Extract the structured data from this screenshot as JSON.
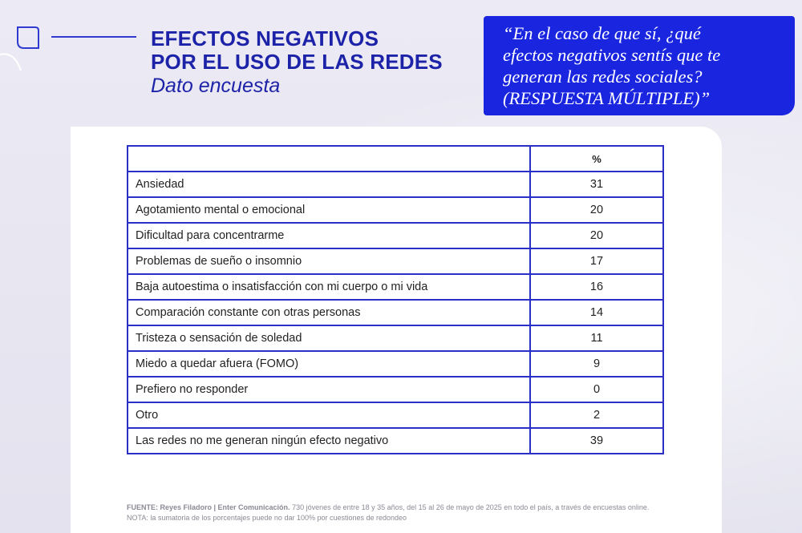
{
  "header": {
    "title_line1": "EFECTOS NEGATIVOS",
    "title_line2": "POR EL USO DE LAS REDES",
    "subtitle": "Dato encuesta"
  },
  "question": {
    "line1": "“En el caso de que sí, ¿qué",
    "line2": "efectos negativos sentís que te",
    "line3": "generan las redes sociales?",
    "line4": "(RESPUESTA MÚLTIPLE)”"
  },
  "chart_data": {
    "type": "table",
    "columns": [
      "",
      "%"
    ],
    "rows": [
      {
        "label": "Ansiedad",
        "value": "31"
      },
      {
        "label": "Agotamiento mental o emocional",
        "value": "20"
      },
      {
        "label": "Dificultad para concentrarme",
        "value": "20"
      },
      {
        "label": "Problemas de sueño o insomnio",
        "value": "17"
      },
      {
        "label": "Baja autoestima o insatisfacción con mi cuerpo o mi vida",
        "value": "16"
      },
      {
        "label": "Comparación constante con otras personas",
        "value": "14"
      },
      {
        "label": "Tristeza o sensación de soledad",
        "value": "11"
      },
      {
        "label": "Miedo a quedar afuera (FOMO)",
        "value": "9"
      },
      {
        "label": "Prefiero no responder",
        "value": "0"
      },
      {
        "label": "Otro",
        "value": "2"
      },
      {
        "label": "Las redes no me generan ningún efecto negativo",
        "value": "39"
      }
    ]
  },
  "footer": {
    "source_bold": "FUENTE: Reyes Filadoro | Enter Comunicación.",
    "source_text": " 730 jóvenes de entre 18 y 35 años, del 15 al 26 de mayo de 2025 en todo el país, a través de encuestas online.  NOTA: la sumatoria de los porcentajes puede no dar 100% por cuestiones de redondeo"
  },
  "colors": {
    "brand_blue": "#1d23a8",
    "question_bg": "#1a25e0",
    "table_border": "#2a2fc6"
  }
}
